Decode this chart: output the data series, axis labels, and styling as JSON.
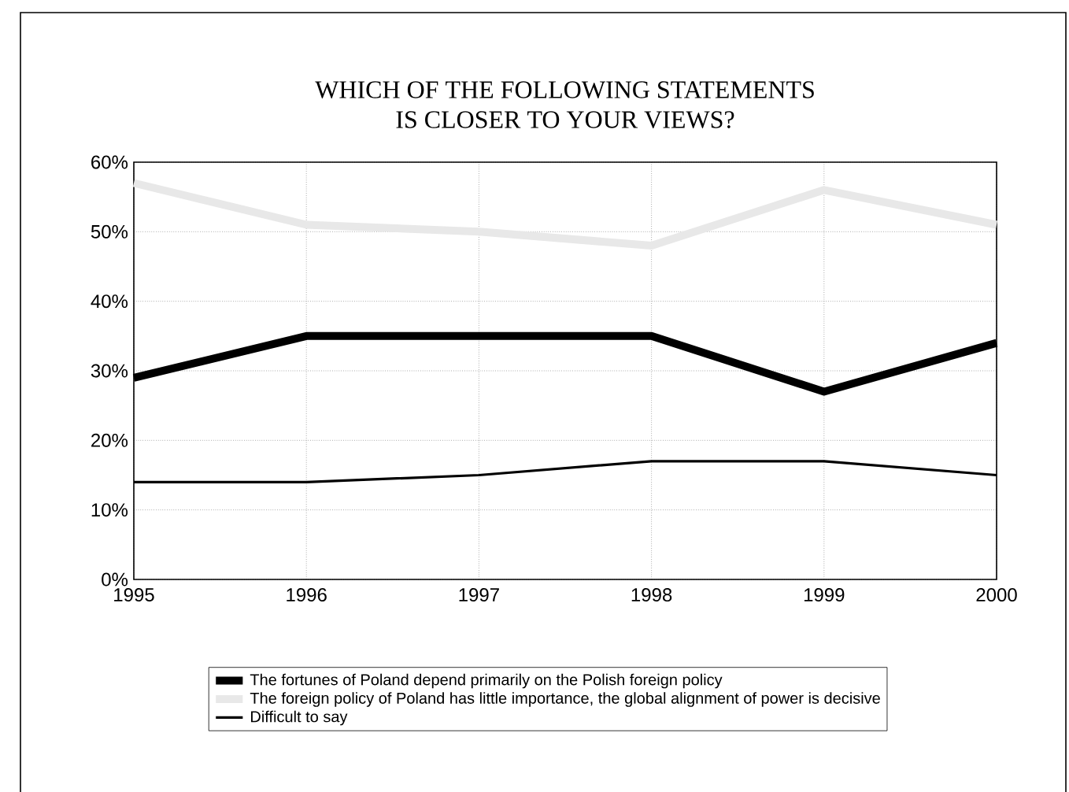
{
  "chart_data": {
    "type": "line",
    "title": "WHICH OF THE FOLLOWING STATEMENTS\nIS CLOSER TO YOUR VIEWS?",
    "x": [
      1995,
      1996,
      1997,
      1998,
      1999,
      2000
    ],
    "series": [
      {
        "name": "The fortunes of Poland depend primarily on the Polish foreign policy",
        "color": "#000000",
        "values": [
          29,
          35,
          35,
          35,
          27,
          34
        ]
      },
      {
        "name": "The foreign policy of Poland has little importance, the global alignment of power is decisive",
        "color": "#e8e8e8",
        "values": [
          57,
          51,
          50,
          48,
          56,
          51
        ]
      },
      {
        "name": "Difficult to say",
        "color": "#000000",
        "values": [
          14,
          14,
          15,
          17,
          17,
          15
        ]
      }
    ],
    "xlim": [
      1995,
      2000
    ],
    "xticks": [
      1995,
      1996,
      1997,
      1998,
      1999,
      2000
    ],
    "ylim": [
      0,
      60
    ],
    "yticks": [
      {
        "value": 0,
        "label": "0%"
      },
      {
        "value": 10,
        "label": "10%"
      },
      {
        "value": 20,
        "label": "20%"
      },
      {
        "value": 30,
        "label": "30%"
      },
      {
        "value": 40,
        "label": "40%"
      },
      {
        "value": 50,
        "label": "50%"
      },
      {
        "value": 60,
        "label": "60%"
      }
    ],
    "grid": true,
    "legend": "bottom",
    "marker": "none",
    "line_style": "solid"
  }
}
